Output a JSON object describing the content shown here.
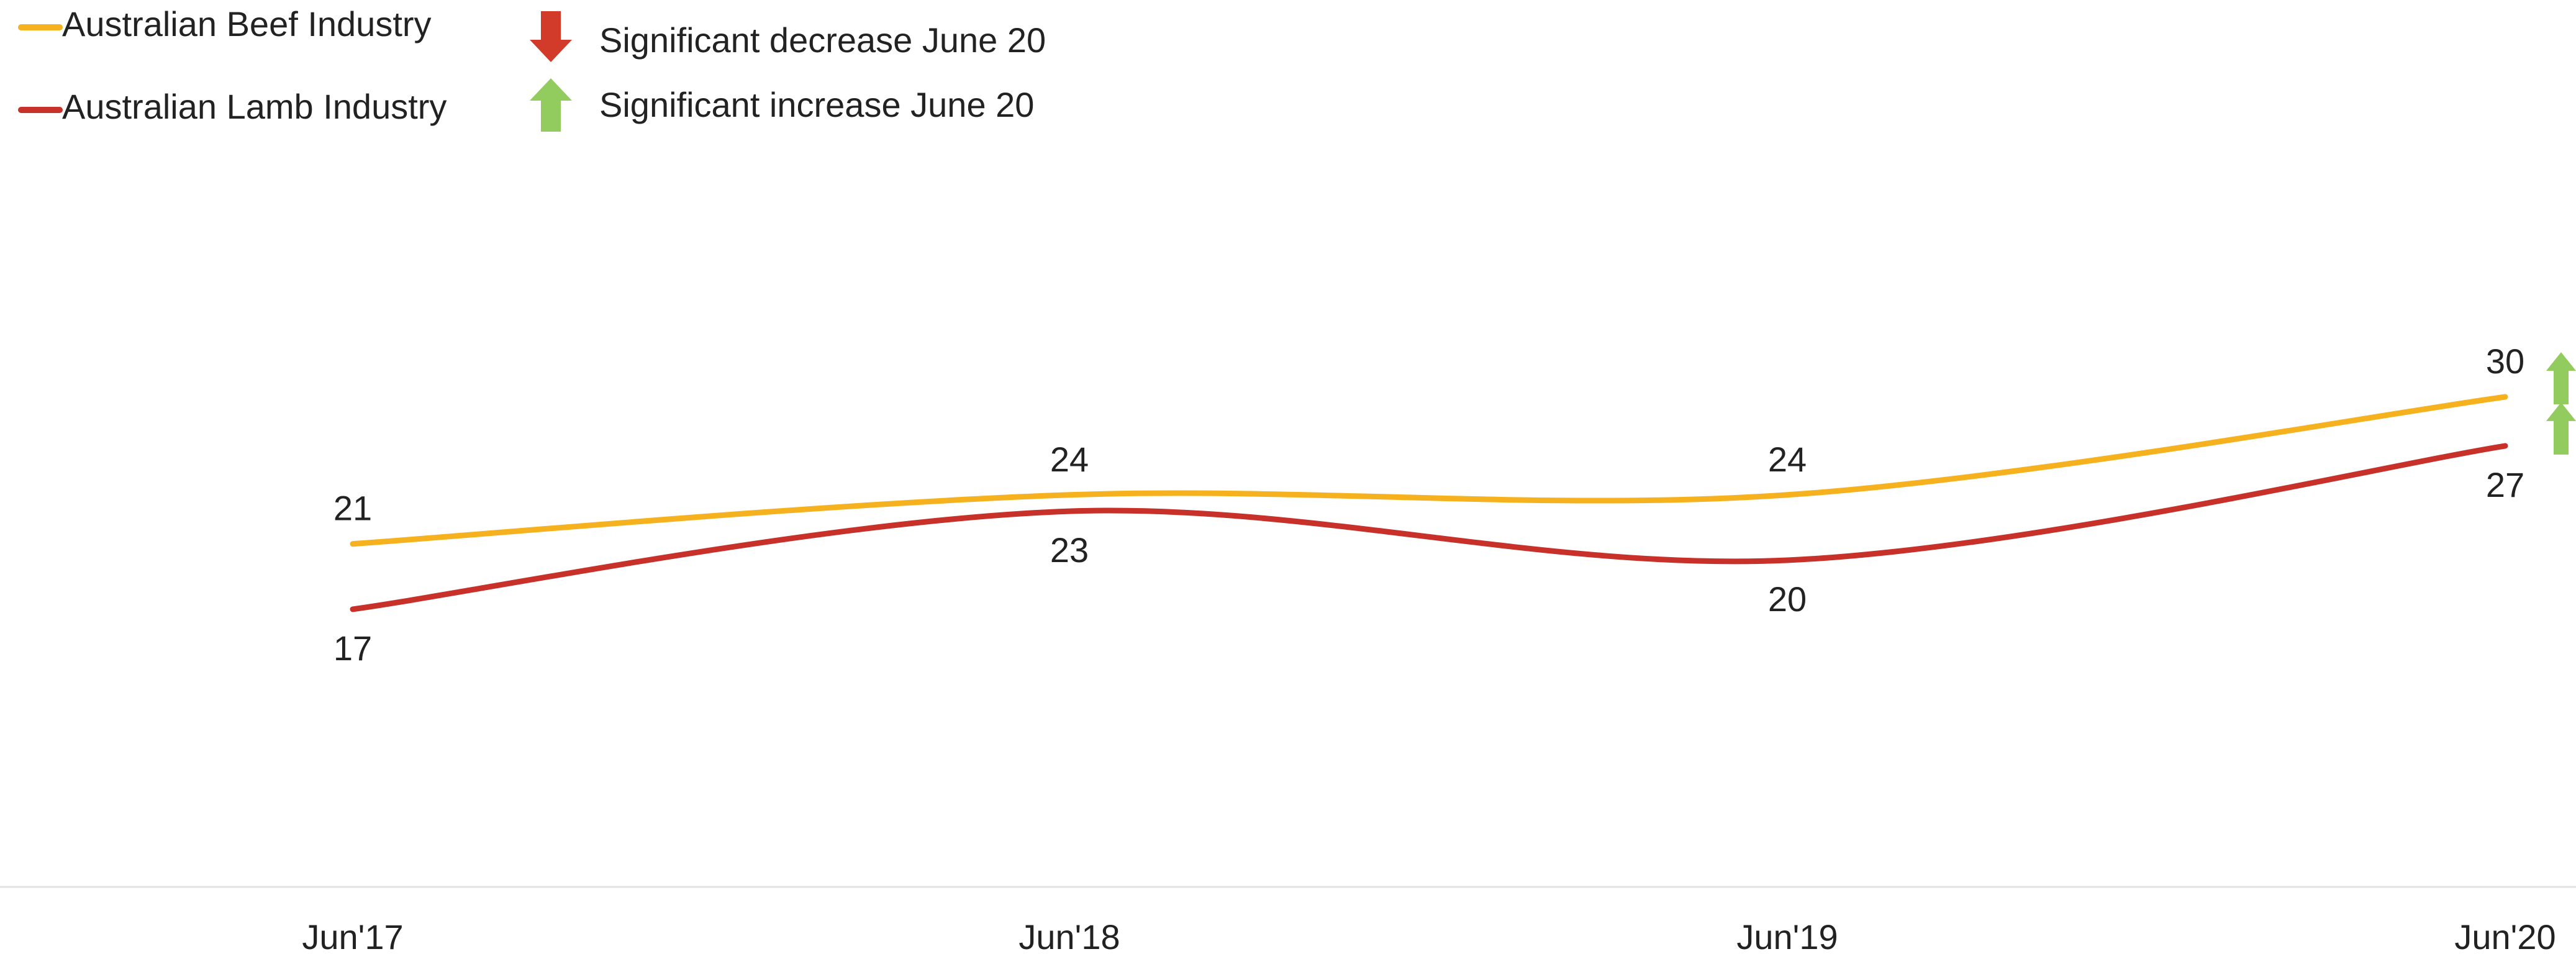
{
  "legend": {
    "series": [
      {
        "label": "Australian Beef Industry",
        "color": "#F5B21E"
      },
      {
        "label": "Australian Lamb Industry",
        "color": "#C8302A"
      }
    ],
    "significance": [
      {
        "label": "Significant decrease June 20",
        "icon": "arrow-down-icon",
        "color": "#D23A2A"
      },
      {
        "label": "Significant increase June 20",
        "icon": "arrow-up-icon",
        "color": "#93CC5E"
      }
    ]
  },
  "chart_data": {
    "type": "line",
    "x": [
      "Jun'17",
      "Jun'18",
      "Jun'19",
      "Jun'20"
    ],
    "series": [
      {
        "name": "Australian Beef Industry",
        "values": [
          21,
          24,
          24,
          30
        ],
        "color": "#F5B21E",
        "significance_jun20": "increase"
      },
      {
        "name": "Australian Lamb Industry",
        "values": [
          17,
          23,
          20,
          27
        ],
        "color": "#C8302A",
        "significance_jun20": "increase"
      }
    ],
    "title": "",
    "xlabel": "",
    "ylabel": "",
    "smooth": true,
    "grid": false,
    "y_axis_visible": false,
    "legend_position": "top-left"
  }
}
